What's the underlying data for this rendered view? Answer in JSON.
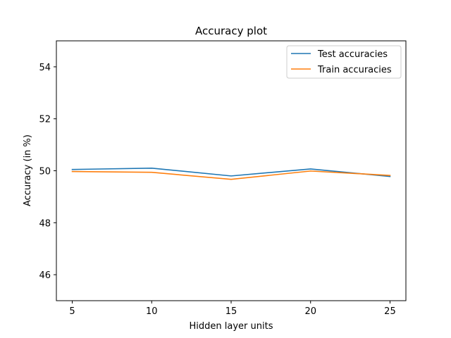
{
  "chart_data": {
    "type": "line",
    "title": "Accuracy plot",
    "xlabel": "Hidden layer units",
    "ylabel": "Accuracy (in %)",
    "x": [
      5,
      10,
      15,
      20,
      25
    ],
    "xticks": [
      5,
      10,
      15,
      20,
      25
    ],
    "yticks": [
      46,
      48,
      50,
      52,
      54
    ],
    "xlim": [
      4,
      26
    ],
    "ylim": [
      45,
      55
    ],
    "grid": false,
    "legend_position": "top-right",
    "series": [
      {
        "name": "Test accuracies",
        "color": "#1f77b4",
        "values": [
          50.05,
          50.1,
          49.8,
          50.07,
          49.78
        ]
      },
      {
        "name": "Train accuracies",
        "color": "#ff7f0e",
        "values": [
          49.97,
          49.94,
          49.67,
          49.99,
          49.82
        ]
      }
    ]
  }
}
